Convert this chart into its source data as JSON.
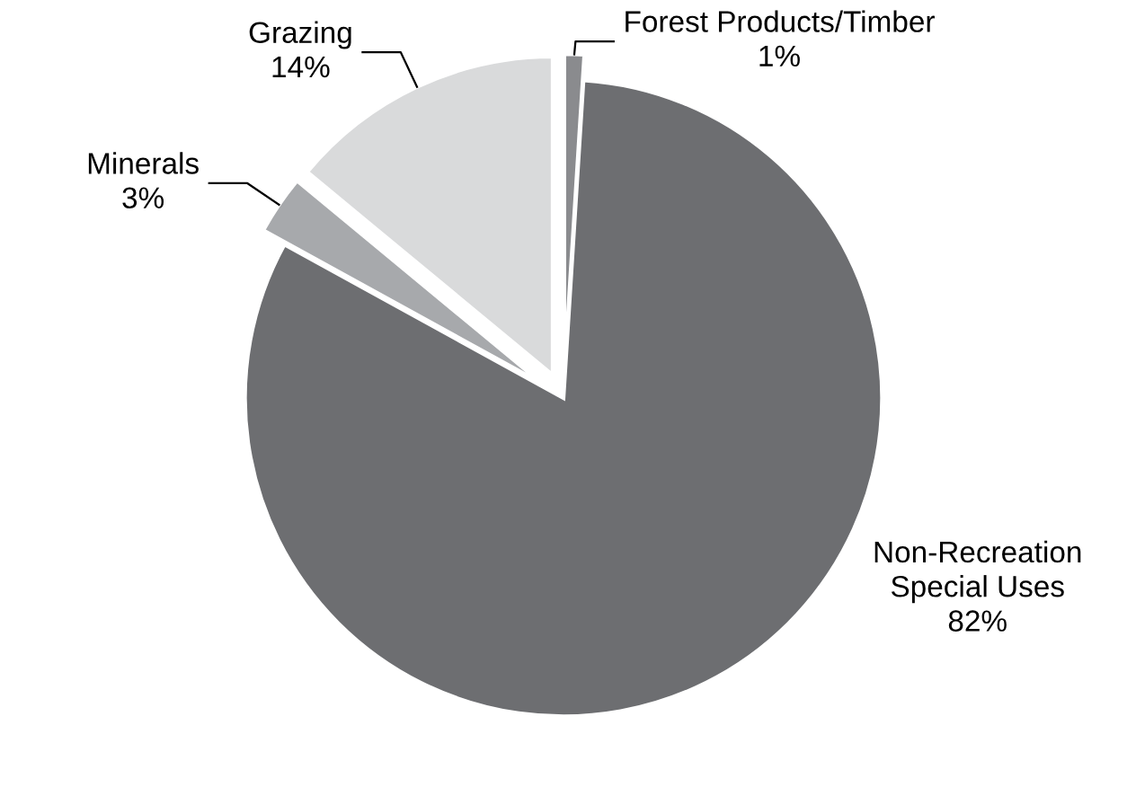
{
  "chart_data": {
    "type": "pie",
    "categories": [
      "Forest Products/Timber",
      "Non-Recreation\nSpecial Uses",
      "Minerals",
      "Grazing"
    ],
    "values": [
      1,
      82,
      3,
      14
    ],
    "value_labels": [
      "1%",
      "82%",
      "3%",
      "14%"
    ],
    "colors": [
      "#8a8b8e",
      "#6d6e71",
      "#a7a9ac",
      "#d9dadb"
    ],
    "legend": false
  }
}
